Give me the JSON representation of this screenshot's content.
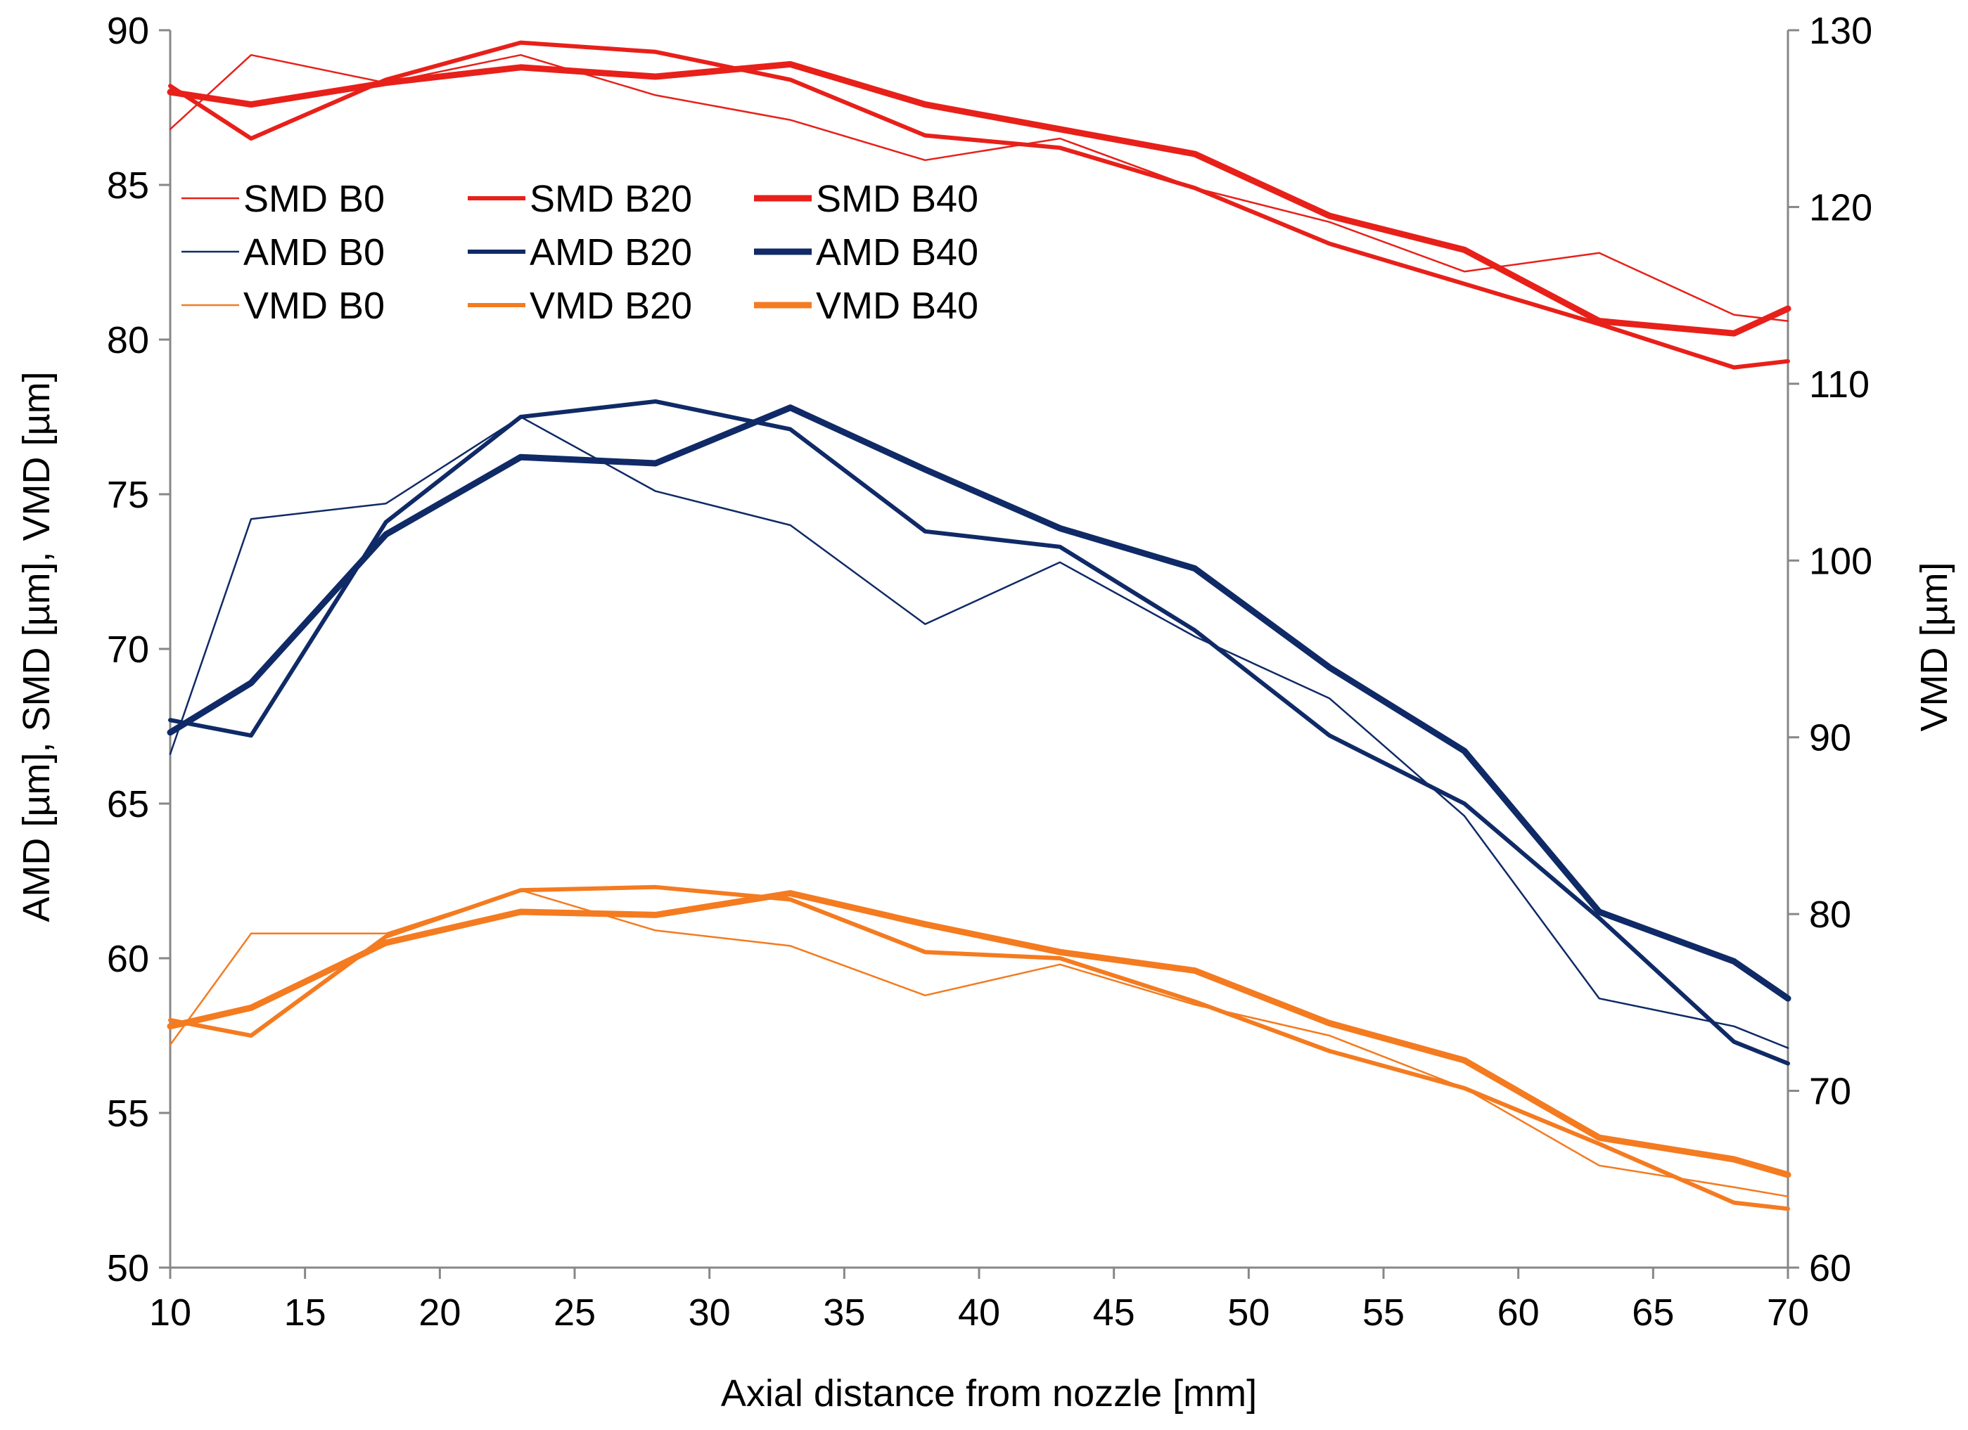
{
  "chart_data": {
    "type": "line",
    "title": "",
    "xlabel": "Axial distance from nozzle [mm]",
    "ylabel": "AMD [µm], SMD [µm], VMD [µm]",
    "y2label": "VMD [µm]",
    "xlim": [
      10,
      70
    ],
    "ylim": [
      50,
      90
    ],
    "y2lim": [
      60,
      130
    ],
    "xticks": [
      "10",
      "15",
      "20",
      "25",
      "30",
      "35",
      "40",
      "45",
      "50",
      "55",
      "60",
      "65",
      "70"
    ],
    "yticks": [
      "50",
      "55",
      "60",
      "65",
      "70",
      "75",
      "80",
      "85",
      "90"
    ],
    "y2ticks": [
      "60",
      "70",
      "80",
      "90",
      "100",
      "110",
      "120",
      "130"
    ],
    "grid": false,
    "legend_position": "top-left",
    "x": [
      10,
      13,
      18,
      23,
      28,
      33,
      38,
      43,
      48,
      53,
      58,
      63,
      68,
      70
    ],
    "series": [
      {
        "name": "SMD B0",
        "color": "#e8201a",
        "weight": "thin",
        "values": [
          86.8,
          89.2,
          88.3,
          89.2,
          87.9,
          87.1,
          85.8,
          86.5,
          84.9,
          83.8,
          82.2,
          82.8,
          80.8,
          80.6
        ]
      },
      {
        "name": "SMD B20",
        "color": "#e8201a",
        "weight": "medium",
        "values": [
          88.2,
          86.5,
          88.4,
          89.6,
          89.3,
          88.4,
          86.6,
          86.2,
          84.9,
          83.1,
          81.8,
          80.5,
          79.1,
          79.3
        ]
      },
      {
        "name": "SMD B40",
        "color": "#e8201a",
        "weight": "thick",
        "values": [
          88.0,
          87.6,
          88.3,
          88.8,
          88.5,
          88.9,
          87.6,
          86.8,
          86.0,
          84.0,
          82.9,
          80.6,
          80.2,
          81.0
        ]
      },
      {
        "name": "AMD B0",
        "color": "#0f2a66",
        "weight": "thin",
        "values": [
          66.6,
          74.2,
          74.7,
          77.5,
          75.1,
          74.0,
          70.8,
          72.8,
          70.4,
          68.4,
          64.6,
          58.7,
          57.8,
          57.1
        ]
      },
      {
        "name": "AMD B20",
        "color": "#0f2a66",
        "weight": "medium",
        "values": [
          67.7,
          67.2,
          74.1,
          77.5,
          78.0,
          77.1,
          73.8,
          73.3,
          70.6,
          67.2,
          65.0,
          61.3,
          57.3,
          56.6
        ]
      },
      {
        "name": "AMD B40",
        "color": "#0f2a66",
        "weight": "thick",
        "values": [
          67.3,
          68.9,
          73.7,
          76.2,
          76.0,
          77.8,
          75.8,
          73.9,
          72.6,
          69.4,
          66.7,
          61.5,
          59.9,
          58.7
        ]
      },
      {
        "name": "VMD B0",
        "color": "#f47b20",
        "weight": "thin",
        "values": [
          57.2,
          60.8,
          60.8,
          62.2,
          60.9,
          60.4,
          58.8,
          59.8,
          58.5,
          57.5,
          55.8,
          53.3,
          52.6,
          52.3
        ]
      },
      {
        "name": "VMD B20",
        "color": "#f47b20",
        "weight": "medium",
        "values": [
          58.0,
          57.5,
          60.7,
          62.2,
          62.3,
          61.9,
          60.2,
          60.0,
          58.6,
          57.0,
          55.8,
          54.0,
          52.1,
          51.9
        ]
      },
      {
        "name": "VMD B40",
        "color": "#f47b20",
        "weight": "thick",
        "values": [
          57.8,
          58.4,
          60.5,
          61.5,
          61.4,
          62.1,
          61.1,
          60.2,
          59.6,
          57.9,
          56.7,
          54.2,
          53.5,
          53.0
        ]
      }
    ]
  }
}
